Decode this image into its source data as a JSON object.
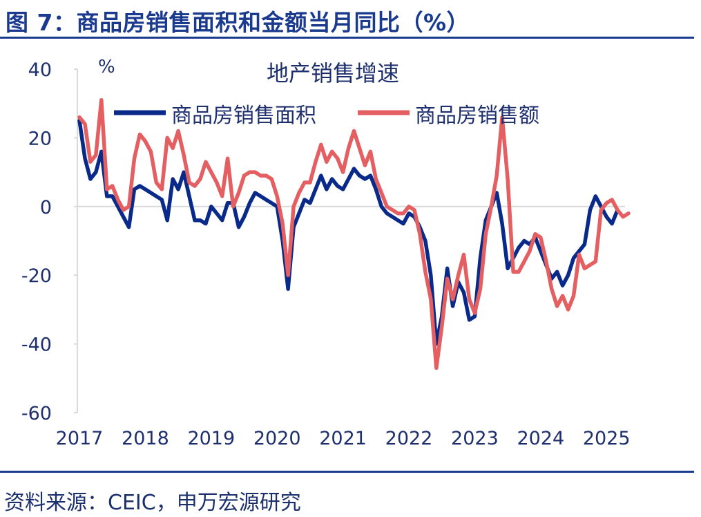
{
  "figure_title": "图 7：商品房销售面积和金额当月同比（%）",
  "source": "资料来源：CEIC，申万宏源研究",
  "colors": {
    "area": "#0a2a8a",
    "amount": "#e35f62",
    "rule": "#1a3a8f",
    "axis": "#d9d9d9"
  },
  "chart_data": {
    "type": "line",
    "title": "地产销售增速",
    "ylabel": "%",
    "xlabel": "",
    "ylim": [
      -60,
      40
    ],
    "yticks": [
      "40",
      "20",
      "0",
      "-20",
      "-40",
      "-60"
    ],
    "xticks": [
      "2017",
      "2018",
      "2019",
      "2020",
      "2021",
      "2022",
      "2023",
      "2024",
      "2025"
    ],
    "x_range": [
      "2017-01",
      "2025-03"
    ],
    "grid": false,
    "legend_position": "top",
    "series": [
      {
        "name": "商品房销售面积",
        "color": "#0a2a8a",
        "points": [
          [
            "2017-01",
            25
          ],
          [
            "2017-02",
            14
          ],
          [
            "2017-03",
            8
          ],
          [
            "2017-04",
            10
          ],
          [
            "2017-05",
            16
          ],
          [
            "2017-06",
            3
          ],
          [
            "2017-07",
            3
          ],
          [
            "2017-08",
            0
          ],
          [
            "2017-09",
            -3
          ],
          [
            "2017-10",
            -6
          ],
          [
            "2017-11",
            5
          ],
          [
            "2017-12",
            6
          ],
          [
            "2018-01",
            5
          ],
          [
            "2018-02",
            4
          ],
          [
            "2018-03",
            3
          ],
          [
            "2018-04",
            2
          ],
          [
            "2018-05",
            -4
          ],
          [
            "2018-06",
            8
          ],
          [
            "2018-07",
            5
          ],
          [
            "2018-08",
            10
          ],
          [
            "2018-09",
            3
          ],
          [
            "2018-10",
            -4
          ],
          [
            "2018-11",
            -4
          ],
          [
            "2018-12",
            -5
          ],
          [
            "2019-01",
            0
          ],
          [
            "2019-02",
            -2
          ],
          [
            "2019-03",
            -4
          ],
          [
            "2019-04",
            1
          ],
          [
            "2019-05",
            1
          ],
          [
            "2019-06",
            -6
          ],
          [
            "2019-07",
            -3
          ],
          [
            "2019-08",
            1
          ],
          [
            "2019-09",
            4
          ],
          [
            "2019-10",
            3
          ],
          [
            "2019-11",
            2
          ],
          [
            "2019-12",
            1
          ],
          [
            "2020-01",
            0
          ],
          [
            "2020-02",
            -10
          ],
          [
            "2020-03",
            -24
          ],
          [
            "2020-04",
            -6
          ],
          [
            "2020-05",
            -2
          ],
          [
            "2020-06",
            2
          ],
          [
            "2020-07",
            1
          ],
          [
            "2020-08",
            5
          ],
          [
            "2020-09",
            9
          ],
          [
            "2020-10",
            5
          ],
          [
            "2020-11",
            8
          ],
          [
            "2020-12",
            6
          ],
          [
            "2021-01",
            5
          ],
          [
            "2021-02",
            8
          ],
          [
            "2021-03",
            11
          ],
          [
            "2021-04",
            9
          ],
          [
            "2021-05",
            8
          ],
          [
            "2021-06",
            9
          ],
          [
            "2021-07",
            5
          ],
          [
            "2021-08",
            0
          ],
          [
            "2021-09",
            -2
          ],
          [
            "2021-10",
            -3
          ],
          [
            "2021-11",
            -4
          ],
          [
            "2021-12",
            -5
          ],
          [
            "2022-01",
            -2
          ],
          [
            "2022-02",
            -3
          ],
          [
            "2022-03",
            -6
          ],
          [
            "2022-04",
            -10
          ],
          [
            "2022-05",
            -20
          ],
          [
            "2022-06",
            -40
          ],
          [
            "2022-07",
            -32
          ],
          [
            "2022-08",
            -18
          ],
          [
            "2022-09",
            -29
          ],
          [
            "2022-10",
            -22
          ],
          [
            "2022-11",
            -25
          ],
          [
            "2022-12",
            -33
          ],
          [
            "2023-01",
            -32
          ],
          [
            "2023-02",
            -15
          ],
          [
            "2023-03",
            -4
          ],
          [
            "2023-04",
            0
          ],
          [
            "2023-05",
            4
          ],
          [
            "2023-06",
            -5
          ],
          [
            "2023-07",
            -18
          ],
          [
            "2023-08",
            -15
          ],
          [
            "2023-09",
            -12
          ],
          [
            "2023-10",
            -10
          ],
          [
            "2023-11",
            -11
          ],
          [
            "2023-12",
            -9
          ],
          [
            "2024-01",
            -13
          ],
          [
            "2024-02",
            -17
          ],
          [
            "2024-03",
            -21
          ],
          [
            "2024-04",
            -19
          ],
          [
            "2024-05",
            -23
          ],
          [
            "2024-06",
            -20
          ],
          [
            "2024-07",
            -15
          ],
          [
            "2024-08",
            -13
          ],
          [
            "2024-09",
            -11
          ],
          [
            "2024-10",
            -1
          ],
          [
            "2024-11",
            3
          ],
          [
            "2024-12",
            0
          ],
          [
            "2025-01",
            -3
          ],
          [
            "2025-02",
            -5
          ],
          [
            "2025-03",
            -1
          ]
        ]
      },
      {
        "name": "商品房销售额",
        "color": "#e35f62",
        "points": [
          [
            "2017-01",
            26
          ],
          [
            "2017-02",
            24
          ],
          [
            "2017-03",
            13
          ],
          [
            "2017-04",
            15
          ],
          [
            "2017-05",
            31
          ],
          [
            "2017-06",
            5
          ],
          [
            "2017-07",
            6
          ],
          [
            "2017-08",
            2
          ],
          [
            "2017-09",
            -1
          ],
          [
            "2017-10",
            0
          ],
          [
            "2017-11",
            14
          ],
          [
            "2017-12",
            21
          ],
          [
            "2018-01",
            19
          ],
          [
            "2018-02",
            16
          ],
          [
            "2018-03",
            7
          ],
          [
            "2018-04",
            5
          ],
          [
            "2018-05",
            20
          ],
          [
            "2018-06",
            17
          ],
          [
            "2018-07",
            22
          ],
          [
            "2018-08",
            15
          ],
          [
            "2018-09",
            7
          ],
          [
            "2018-10",
            6
          ],
          [
            "2018-11",
            8
          ],
          [
            "2018-12",
            13
          ],
          [
            "2019-01",
            10
          ],
          [
            "2019-02",
            7
          ],
          [
            "2019-03",
            3
          ],
          [
            "2019-04",
            14
          ],
          [
            "2019-05",
            0
          ],
          [
            "2019-06",
            4
          ],
          [
            "2019-07",
            9
          ],
          [
            "2019-08",
            10
          ],
          [
            "2019-09",
            10
          ],
          [
            "2019-10",
            9
          ],
          [
            "2019-11",
            9
          ],
          [
            "2019-12",
            8
          ],
          [
            "2020-01",
            3
          ],
          [
            "2020-02",
            -5
          ],
          [
            "2020-03",
            -20
          ],
          [
            "2020-04",
            0
          ],
          [
            "2020-05",
            4
          ],
          [
            "2020-06",
            7
          ],
          [
            "2020-07",
            7
          ],
          [
            "2020-08",
            13
          ],
          [
            "2020-09",
            18
          ],
          [
            "2020-10",
            13
          ],
          [
            "2020-11",
            16
          ],
          [
            "2020-12",
            14
          ],
          [
            "2021-01",
            10
          ],
          [
            "2021-02",
            17
          ],
          [
            "2021-03",
            22
          ],
          [
            "2021-04",
            17
          ],
          [
            "2021-05",
            12
          ],
          [
            "2021-06",
            16
          ],
          [
            "2021-07",
            8
          ],
          [
            "2021-08",
            4
          ],
          [
            "2021-09",
            0
          ],
          [
            "2021-10",
            -1
          ],
          [
            "2021-11",
            -2
          ],
          [
            "2021-12",
            -2
          ],
          [
            "2022-01",
            0
          ],
          [
            "2022-02",
            -1
          ],
          [
            "2022-03",
            -8
          ],
          [
            "2022-04",
            -19
          ],
          [
            "2022-05",
            -27
          ],
          [
            "2022-06",
            -47
          ],
          [
            "2022-07",
            -35
          ],
          [
            "2022-08",
            -21
          ],
          [
            "2022-09",
            -27
          ],
          [
            "2022-10",
            -20
          ],
          [
            "2022-11",
            -14
          ],
          [
            "2022-12",
            -27
          ],
          [
            "2023-01",
            -31
          ],
          [
            "2023-02",
            -24
          ],
          [
            "2023-03",
            -8
          ],
          [
            "2023-04",
            0
          ],
          [
            "2023-05",
            9
          ],
          [
            "2023-06",
            26
          ],
          [
            "2023-07",
            8
          ],
          [
            "2023-08",
            -19
          ],
          [
            "2023-09",
            -19
          ],
          [
            "2023-10",
            -16
          ],
          [
            "2023-11",
            -13
          ],
          [
            "2023-12",
            -8
          ],
          [
            "2024-01",
            -9
          ],
          [
            "2024-02",
            -16
          ],
          [
            "2024-03",
            -24
          ],
          [
            "2024-04",
            -29
          ],
          [
            "2024-05",
            -26
          ],
          [
            "2024-06",
            -30
          ],
          [
            "2024-07",
            -26
          ],
          [
            "2024-08",
            -14
          ],
          [
            "2024-09",
            -18
          ],
          [
            "2024-10",
            -17
          ],
          [
            "2024-11",
            -16
          ],
          [
            "2024-12",
            -1
          ],
          [
            "2025-01",
            1
          ],
          [
            "2025-02",
            2
          ],
          [
            "2025-03",
            -1
          ],
          [
            "2025-04",
            -3
          ],
          [
            "2025-05",
            -2
          ]
        ]
      }
    ]
  }
}
